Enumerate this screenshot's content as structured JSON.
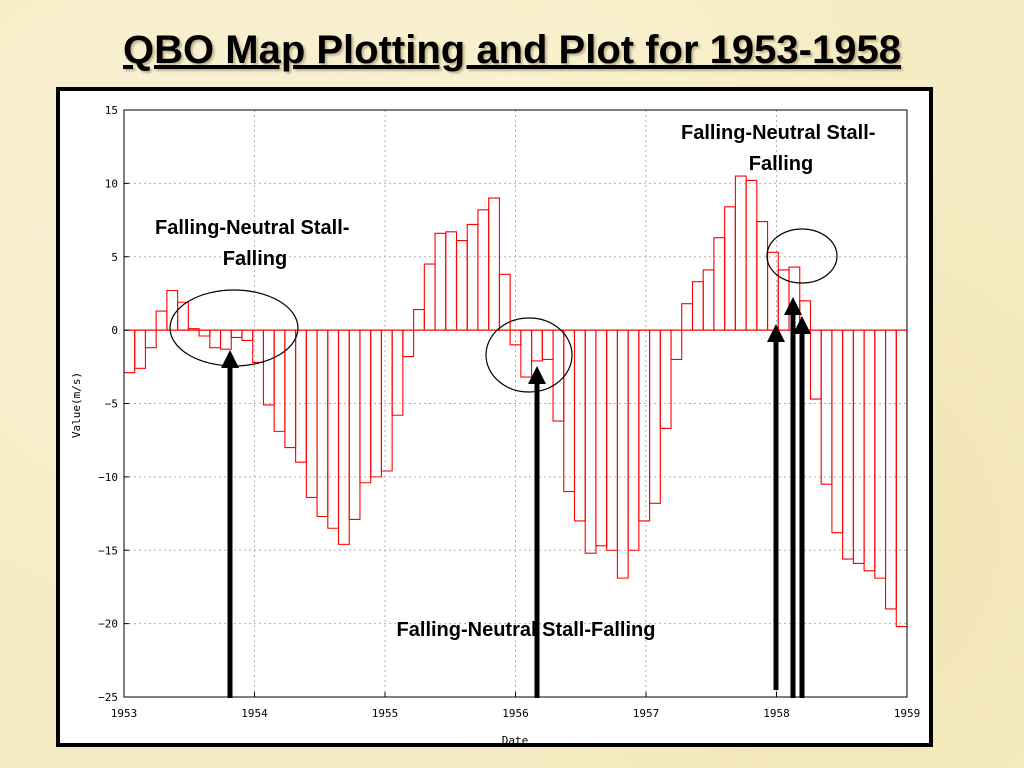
{
  "slide": {
    "title": "QBO Map Plotting and Plot for 1953-1958"
  },
  "annotations": [
    {
      "id": "a1",
      "lines": [
        "Falling-Neutral Stall-",
        "Falling"
      ]
    },
    {
      "id": "a2",
      "lines": [
        "Falling-Neutral Stall-",
        "Falling"
      ]
    },
    {
      "id": "a3",
      "lines": [
        "Falling-Neutral Stall-Falling"
      ]
    }
  ],
  "chart_data": {
    "type": "bar",
    "title": "",
    "xlabel": "Date",
    "ylabel": "Value(m/s)",
    "xlim": [
      1953,
      1959
    ],
    "ylim": [
      -25,
      15
    ],
    "x_ticks": [
      "1953",
      "1954",
      "1955",
      "1956",
      "1957",
      "1958",
      "1959"
    ],
    "y_ticks": [
      "15",
      "10",
      "5",
      "0",
      "−5",
      "−10",
      "−15",
      "−20",
      "−25"
    ],
    "grid": true,
    "bar_color": "#ff0000",
    "x_step_years": 0.0833,
    "values": [
      -2.9,
      -2.6,
      -1.2,
      1.3,
      2.7,
      1.9,
      0.1,
      -0.4,
      -1.2,
      -1.3,
      -0.5,
      -0.7,
      -2.2,
      -5.1,
      -6.9,
      -8.0,
      -9.0,
      -11.4,
      -12.7,
      -13.5,
      -14.6,
      -12.9,
      -10.4,
      -10.0,
      -9.6,
      -5.8,
      -1.8,
      1.4,
      4.5,
      6.6,
      6.7,
      6.1,
      7.2,
      8.2,
      9.0,
      3.8,
      -1.0,
      -3.2,
      -2.1,
      -2.0,
      -6.2,
      -11.0,
      -13.0,
      -15.2,
      -14.7,
      -15.0,
      -16.9,
      -15.0,
      -13.0,
      -11.8,
      -6.7,
      -2.0,
      1.8,
      3.3,
      4.1,
      6.3,
      8.4,
      10.5,
      10.2,
      7.4,
      5.3,
      4.1,
      4.3,
      2.0,
      -4.7,
      -10.5,
      -13.8,
      -15.6,
      -15.9,
      -16.4,
      -16.9,
      -19.0,
      -20.2
    ],
    "annotated_months": [
      "1953-10",
      "1956-02",
      "1957-12",
      "1958-02",
      "1958-03"
    ]
  }
}
